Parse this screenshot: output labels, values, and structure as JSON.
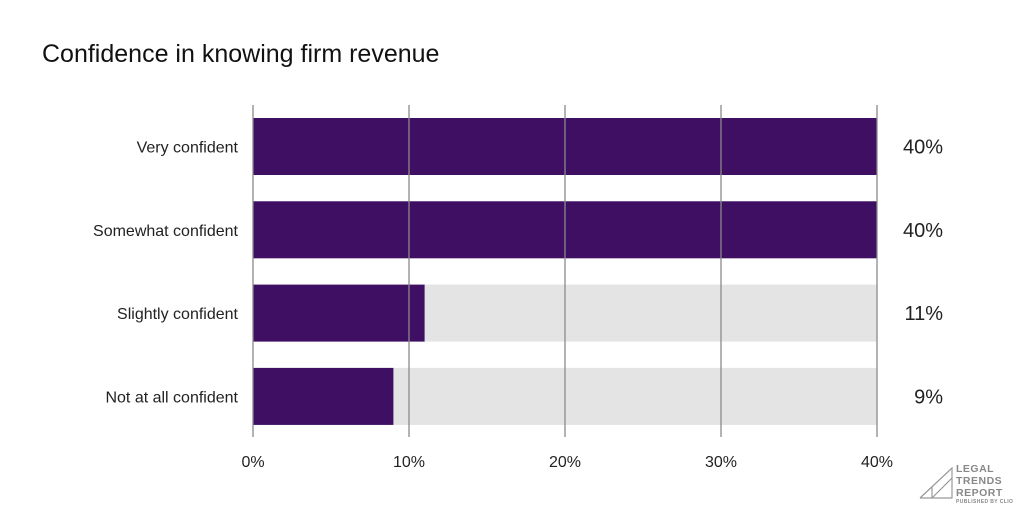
{
  "chart_data": {
    "type": "bar",
    "orientation": "horizontal",
    "title": "Confidence in knowing firm revenue",
    "categories": [
      "Very confident",
      "Somewhat confident",
      "Slightly confident",
      "Not at all confident"
    ],
    "values": [
      40,
      40,
      11,
      9
    ],
    "value_labels": [
      "40%",
      "40%",
      "11%",
      "9%"
    ],
    "xlim": [
      0,
      40
    ],
    "xticks": [
      0,
      10,
      20,
      30,
      40
    ],
    "xtick_labels": [
      "0%",
      "10%",
      "20%",
      "30%",
      "40%"
    ],
    "grid": true,
    "colors": {
      "bar": "#3e0f62",
      "track": "#e4e4e4",
      "grid": "#8a8a8a"
    }
  },
  "logo": {
    "lines": [
      "LEGAL",
      "TRENDS",
      "REPORT"
    ],
    "sub": "PUBLISHED BY CLIO"
  }
}
